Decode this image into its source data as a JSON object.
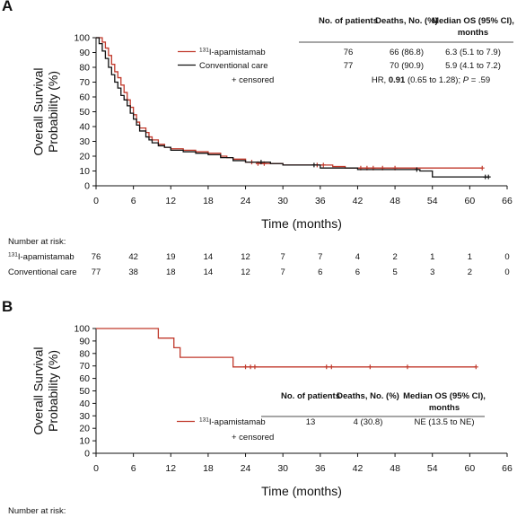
{
  "chart_data": [
    {
      "type": "line",
      "panel": "A",
      "xlabel": "Time (months)",
      "ylabel": "Overall Survival Probability (%)",
      "ylabel_lines": [
        "Overall Survival",
        "Probability (%)"
      ],
      "xlim": [
        0,
        66
      ],
      "ylim": [
        0,
        100
      ],
      "xticks": [
        0,
        6,
        12,
        18,
        24,
        30,
        36,
        42,
        48,
        54,
        60,
        66
      ],
      "yticks": [
        0,
        10,
        20,
        30,
        40,
        50,
        60,
        70,
        80,
        90,
        100
      ],
      "grid": false,
      "series": [
        {
          "name": "131I-apamistamab",
          "name_sup": "131",
          "name_rest": "I-apamistamab",
          "color": "#c0392b",
          "x": [
            0,
            1,
            1.5,
            2,
            2.5,
            3,
            3.5,
            4,
            4.5,
            5,
            5.5,
            6,
            6.5,
            7,
            8,
            8.5,
            9,
            10,
            11,
            12,
            14,
            16,
            18,
            20,
            21,
            22,
            24,
            26,
            28,
            30,
            36,
            38,
            40,
            62
          ],
          "y": [
            100,
            97,
            93,
            88,
            82,
            77,
            73,
            68,
            63,
            58,
            53,
            48,
            43,
            39,
            36,
            33,
            31,
            28,
            26,
            25,
            24,
            23,
            22,
            20,
            19,
            18,
            16,
            15,
            15,
            14,
            14,
            13,
            12,
            12
          ],
          "censored_x": [
            25,
            26,
            27,
            35.5,
            36.5,
            42.5,
            43.5,
            44.5,
            46,
            48,
            62
          ]
        },
        {
          "name": "Conventional care",
          "color": "#111111",
          "x": [
            0,
            0.5,
            1,
            1.5,
            2,
            2.5,
            3,
            3.5,
            4,
            4.5,
            5,
            5.5,
            6,
            6.5,
            7,
            8,
            8.5,
            9,
            10,
            11,
            12,
            14,
            16,
            18,
            20,
            22,
            24,
            28,
            30,
            36,
            42,
            52,
            54,
            63
          ],
          "y": [
            100,
            96,
            91,
            86,
            80,
            75,
            70,
            66,
            61,
            58,
            54,
            49,
            45,
            41,
            37,
            33,
            31,
            29,
            27,
            26,
            24,
            23,
            22,
            21,
            19,
            17,
            16,
            15,
            14,
            12,
            11,
            10,
            6,
            6
          ],
          "censored_x": [
            26.5,
            35,
            51.5,
            62.5,
            63
          ]
        }
      ],
      "table": {
        "headers": [
          "No. of patients",
          "Deaths, No. (%)",
          "Median OS (95% CI), months"
        ],
        "header_lines": [
          [
            "No. of patients"
          ],
          [
            "Deaths, No. (%)"
          ],
          [
            "Median OS (95% CI),",
            "months"
          ]
        ],
        "rows": [
          {
            "patients": "76",
            "deaths": "66 (86.8)",
            "median": "6.3 (5.1 to 7.9)"
          },
          {
            "patients": "77",
            "deaths": "70 (90.9)",
            "median": "5.9 (4.1 to 7.2)"
          }
        ],
        "censored_label": "+ censored",
        "hr_text": "HR, 0.91 (0.65 to 1.28); P = .59",
        "hr_parts": [
          "HR, ",
          "0.91",
          " (0.65 to 1.28); ",
          "P",
          " = .59"
        ]
      },
      "risk": {
        "title": "Number at risk:",
        "rows": [
          {
            "label_sup": "131",
            "label": "I-apamistamab",
            "values": [
              "76",
              "42",
              "19",
              "14",
              "12",
              "7",
              "7",
              "4",
              "2",
              "1",
              "1",
              "0"
            ]
          },
          {
            "label_sup": "",
            "label": "Conventional care",
            "values": [
              "77",
              "38",
              "18",
              "14",
              "12",
              "7",
              "6",
              "6",
              "5",
              "3",
              "2",
              "0"
            ]
          }
        ]
      }
    },
    {
      "type": "line",
      "panel": "B",
      "xlabel": "Time (months)",
      "ylabel": "Overall Survival Probability (%)",
      "ylabel_lines": [
        "Overall Survival",
        "Probability (%)"
      ],
      "xlim": [
        0,
        66
      ],
      "ylim": [
        0,
        100
      ],
      "xticks": [
        0,
        6,
        12,
        18,
        24,
        30,
        36,
        42,
        48,
        54,
        60,
        66
      ],
      "yticks": [
        0,
        10,
        20,
        30,
        40,
        50,
        60,
        70,
        80,
        90,
        100
      ],
      "grid": false,
      "series": [
        {
          "name": "131I-apamistamab",
          "name_sup": "131",
          "name_rest": "I-apamistamab",
          "color": "#c0392b",
          "x": [
            0,
            10,
            12.5,
            13.5,
            22,
            61
          ],
          "y": [
            100,
            92.3,
            84.6,
            76.9,
            69.2,
            69.2
          ],
          "censored_x": [
            24,
            24.8,
            25.5,
            37,
            37.8,
            44,
            50,
            61
          ]
        }
      ],
      "table": {
        "headers": [
          "No. of patients",
          "Deaths, No. (%)",
          "Median OS (95% CI), months"
        ],
        "header_lines": [
          [
            "No. of patients"
          ],
          [
            "Deaths, No. (%)"
          ],
          [
            "Median OS (95% CI),",
            "months"
          ]
        ],
        "rows": [
          {
            "patients": "13",
            "deaths": "4 (30.8)",
            "median": "NE (13.5 to NE)"
          }
        ],
        "censored_label": "+ censored"
      },
      "risk": {
        "title": "Number at risk:"
      }
    }
  ]
}
